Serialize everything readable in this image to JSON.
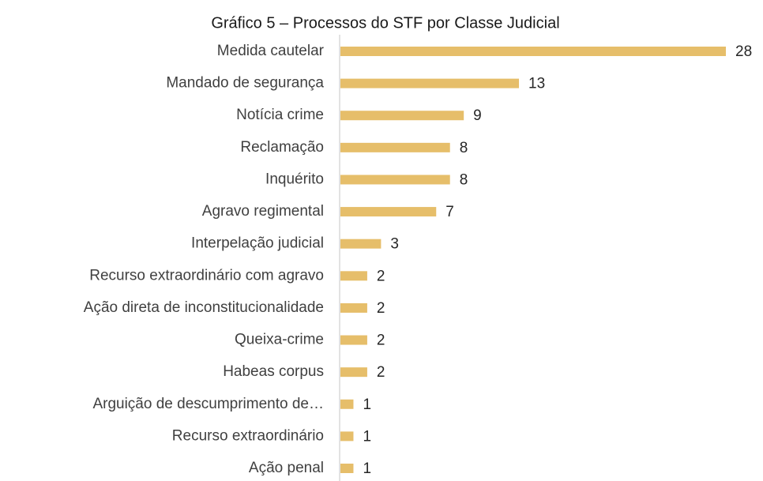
{
  "chart_data": {
    "type": "hbar",
    "title": "Gráfico 5 – Processos do STF por Classe Judicial",
    "categories": [
      "Medida cautelar",
      "Mandado de segurança",
      "Notícia crime",
      "Reclamação",
      "Inquérito",
      "Agravo regimental",
      "Interpelação judicial",
      "Recurso extraordinário com agravo",
      "Ação direta de inconstitucionalidade",
      "Queixa-crime",
      "Habeas corpus",
      "Arguição de descumprimento de…",
      "Recurso extraordinário",
      "Ação penal"
    ],
    "values": [
      28,
      13,
      9,
      8,
      8,
      7,
      3,
      2,
      2,
      2,
      2,
      1,
      1,
      1
    ],
    "color": "#e6be6a"
  }
}
